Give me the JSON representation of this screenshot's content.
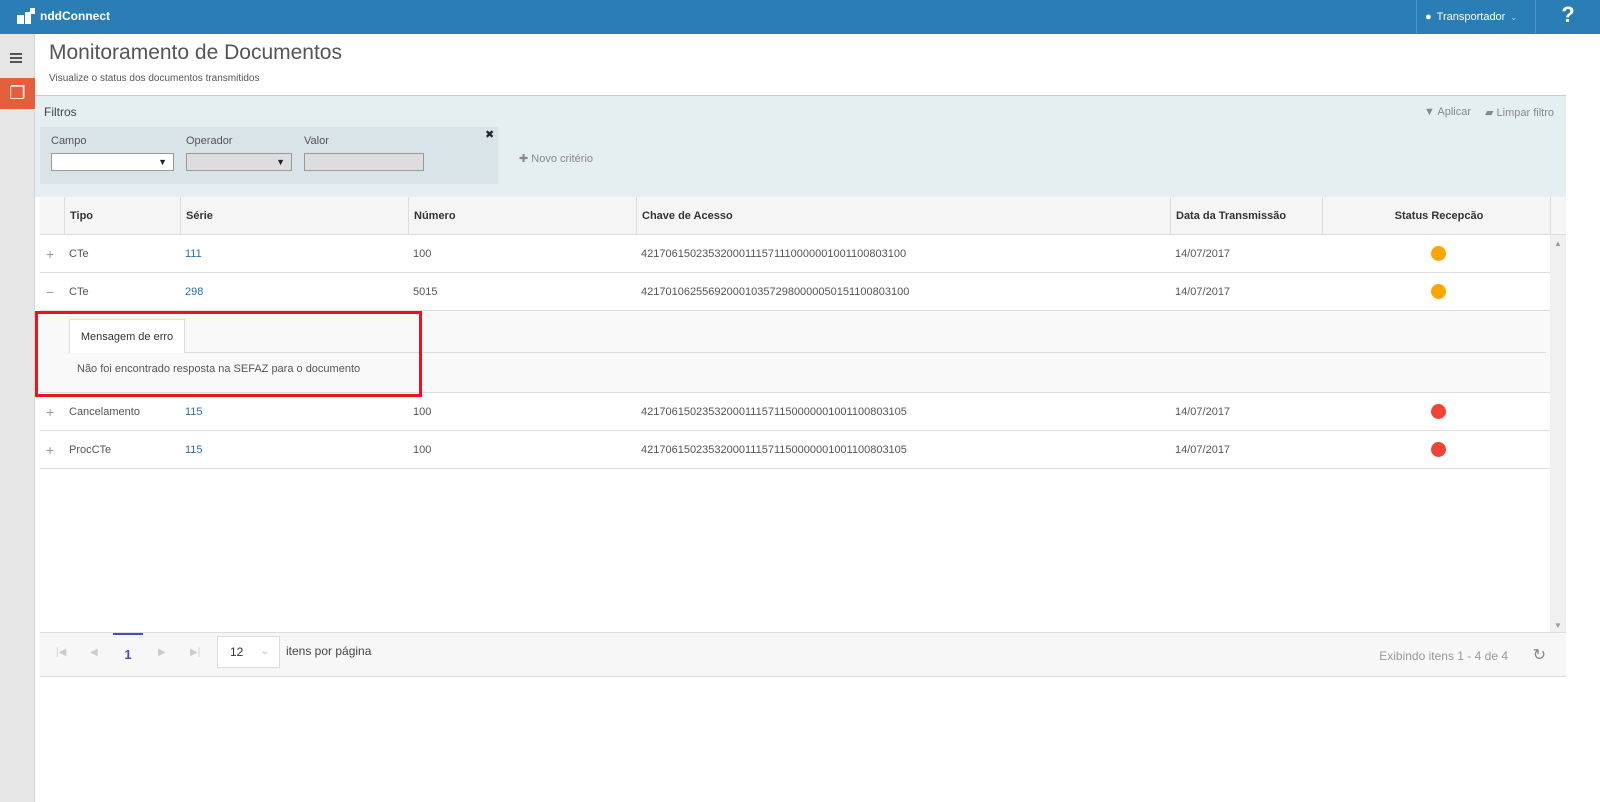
{
  "app": {
    "brand": "nddConnect",
    "user": "Transportador",
    "help": "?"
  },
  "page": {
    "title": "Monitoramento de Documentos",
    "subtitle": "Visualize o status dos documentos transmitidos"
  },
  "filters": {
    "title": "Filtros",
    "apply": "Aplicar",
    "clear": "Limpar filtro",
    "field_label": "Campo",
    "operator_label": "Operador",
    "value_label": "Valor",
    "field_value": "",
    "operator_value": "",
    "value_value": "",
    "new_criterion": "Novo critério"
  },
  "table": {
    "columns": [
      "Tipo",
      "Série",
      "Número",
      "Chave de Acesso",
      "Data da Transmissão",
      "Status Recepcão"
    ],
    "rows": [
      {
        "expand": "+",
        "tipo": "CTe",
        "serie": "111",
        "numero": "100",
        "chave": "42170615023532000111571110000001001100803100",
        "data": "14/07/2017",
        "status_color": "#ffa500"
      },
      {
        "expand": "−",
        "tipo": "CTe",
        "serie": "298",
        "numero": "5015",
        "chave": "42170106255692000103572980000050151100803100",
        "data": "14/07/2017",
        "status_color": "#ffa500"
      },
      {
        "expand": "+",
        "tipo": "Cancelamento",
        "serie": "115",
        "numero": "100",
        "chave": "42170615023532000111571150000001001100803105",
        "data": "14/07/2017",
        "status_color": "#f44336"
      },
      {
        "expand": "+",
        "tipo": "ProcCTe",
        "serie": "115",
        "numero": "100",
        "chave": "42170615023532000111571150000001001100803105",
        "data": "14/07/2017",
        "status_color": "#f44336"
      }
    ],
    "detail": {
      "tab": "Mensagem de erro",
      "message": "Não foi encontrado resposta na SEFAZ para o documento"
    }
  },
  "pager": {
    "page": "1",
    "page_size": "12",
    "page_size_label": "itens por página",
    "info": "Exibindo itens 1 - 4 de 4"
  },
  "colors": {
    "topbar": "#2a7db5",
    "accent": "#e55e3c",
    "highlight": "#e8141e"
  }
}
